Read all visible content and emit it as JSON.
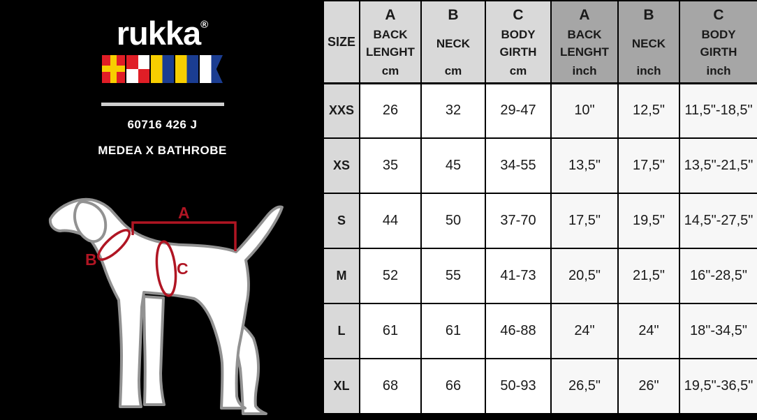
{
  "brand": {
    "wordmark": "rukka",
    "registered": "®",
    "flags": [
      "signal-flag-R",
      "signal-flag-U",
      "signal-flag-K",
      "signal-flag-K",
      "signal-flag-A"
    ],
    "product_code": "60716 426 J",
    "product_name": "MEDEA X BATHROBE"
  },
  "diagram": {
    "label_a": "A",
    "label_b": "B",
    "label_c": "C"
  },
  "table": {
    "columns": [
      {
        "letter": "",
        "name": "SIZE",
        "unit": ""
      },
      {
        "letter": "A",
        "name": "BACK LENGHT",
        "unit": "cm"
      },
      {
        "letter": "B",
        "name": "NECK",
        "unit": "cm"
      },
      {
        "letter": "C",
        "name": "BODY GIRTH",
        "unit": "cm"
      },
      {
        "letter": "A",
        "name": "BACK LENGHT",
        "unit": "inch"
      },
      {
        "letter": "B",
        "name": "NECK",
        "unit": "inch"
      },
      {
        "letter": "C",
        "name": "BODY GIRTH",
        "unit": "inch"
      }
    ],
    "rows": [
      {
        "size": "XXS",
        "values": [
          "26",
          "32",
          "29-47",
          "10\"",
          "12,5\"",
          "11,5\"-18,5\""
        ]
      },
      {
        "size": "XS",
        "values": [
          "35",
          "45",
          "34-55",
          "13,5\"",
          "17,5\"",
          "13,5\"-21,5\""
        ]
      },
      {
        "size": "S",
        "values": [
          "44",
          "50",
          "37-70",
          "17,5\"",
          "19,5\"",
          "14,5\"-27,5\""
        ]
      },
      {
        "size": "M",
        "values": [
          "52",
          "55",
          "41-73",
          "20,5\"",
          "21,5\"",
          "16\"-28,5\""
        ]
      },
      {
        "size": "L",
        "values": [
          "61",
          "61",
          "46-88",
          "24\"",
          "24\"",
          "18\"-34,5\""
        ]
      },
      {
        "size": "XL",
        "values": [
          "68",
          "66",
          "50-93",
          "26,5\"",
          "26\"",
          "19,5\"-36,5\""
        ]
      }
    ]
  },
  "colors": {
    "panel_bg": "#000000",
    "header_cm_bg": "#d9d9d9",
    "header_inch_bg": "#a6a6a6",
    "size_col_bg": "#d9d9d9",
    "inch_cell_bg": "#f7f7f7",
    "marker_red": "#b01523",
    "dog_outline": "#929292",
    "flag_red": "#e01e26",
    "flag_yellow": "#f7ce00",
    "flag_blue": "#1b3d91"
  }
}
